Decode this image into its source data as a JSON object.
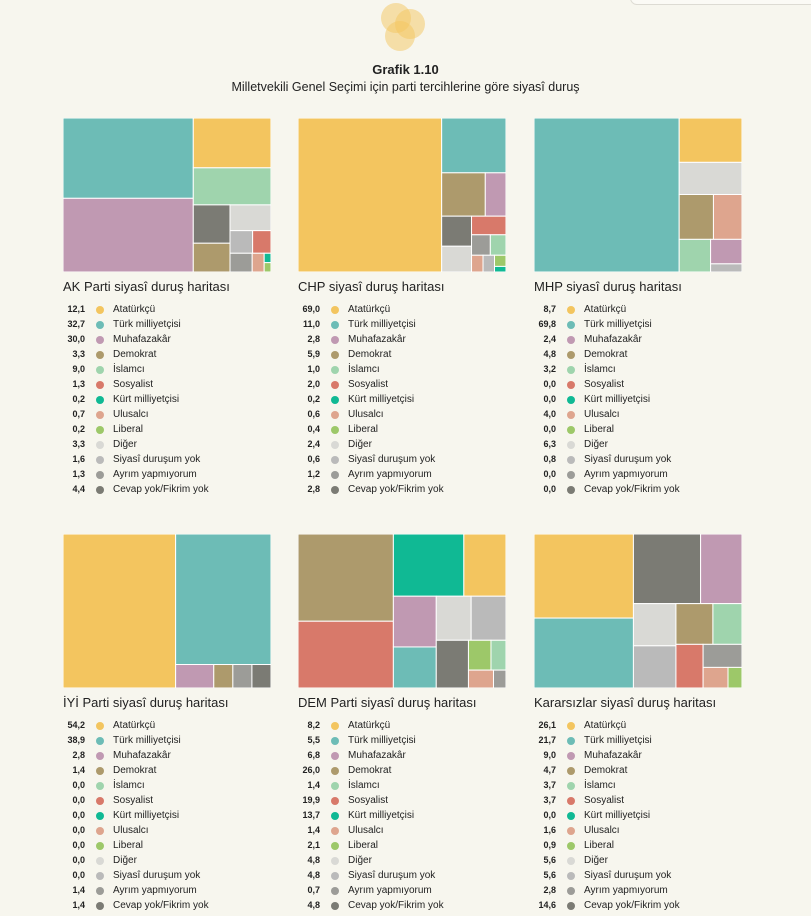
{
  "figure_label": "Grafik 1.10",
  "figure_title": "Milletvekili Genel Seçimi için parti tercihlerine göre siyasî duruş",
  "colors": {
    "Atatürkçü": "#f3c55f",
    "Türk milliyetçisi": "#6dbcb6",
    "Muhafazakâr": "#c099b2",
    "Demokrat": "#ad9a6c",
    "İslamcı": "#9fd4ad",
    "Sosyalist": "#d8796a",
    "Kürt milliyetçisi": "#10b994",
    "Ulusalcı": "#dea58e",
    "Liberal": "#9dc869",
    "Diğer": "#d9d9d5",
    "Siyasî duruşum yok": "#bababa",
    "Ayrım yapmıyorum": "#9c9c98",
    "Cevap yok/Fikrim yok": "#7b7b74"
  },
  "chart_data": [
    {
      "type": "treemap",
      "title": "AK Parti siyasî duruş haritası",
      "categories": [
        "Atatürkçü",
        "Türk milliyetçisi",
        "Muhafazakâr",
        "Demokrat",
        "İslamcı",
        "Sosyalist",
        "Kürt milliyetçisi",
        "Ulusalcı",
        "Liberal",
        "Diğer",
        "Siyasî duruşum yok",
        "Ayrım yapmıyorum",
        "Cevap yok/Fikrim yok"
      ],
      "values": [
        12.1,
        32.7,
        30.0,
        3.3,
        9.0,
        1.3,
        0.2,
        0.7,
        0.2,
        3.3,
        1.6,
        1.3,
        4.4
      ],
      "labels": [
        "12,1",
        "32,7",
        "30,0",
        "3,3",
        "9,0",
        "1,3",
        "0,2",
        "0,7",
        "0,2",
        "3,3",
        "1,6",
        "1,3",
        "4,4"
      ]
    },
    {
      "type": "treemap",
      "title": "CHP siyasî duruş haritası",
      "categories": [
        "Atatürkçü",
        "Türk milliyetçisi",
        "Muhafazakâr",
        "Demokrat",
        "İslamcı",
        "Sosyalist",
        "Kürt milliyetçisi",
        "Ulusalcı",
        "Liberal",
        "Diğer",
        "Siyasî duruşum yok",
        "Ayrım yapmıyorum",
        "Cevap yok/Fikrim yok"
      ],
      "values": [
        69.0,
        11.0,
        2.8,
        5.9,
        1.0,
        2.0,
        0.2,
        0.6,
        0.4,
        2.4,
        0.6,
        1.2,
        2.8
      ],
      "labels": [
        "69,0",
        "11,0",
        "2,8",
        "5,9",
        "1,0",
        "2,0",
        "0,2",
        "0,6",
        "0,4",
        "2,4",
        "0,6",
        "1,2",
        "2,8"
      ]
    },
    {
      "type": "treemap",
      "title": "MHP siyasî duruş haritası",
      "categories": [
        "Atatürkçü",
        "Türk milliyetçisi",
        "Muhafazakâr",
        "Demokrat",
        "İslamcı",
        "Sosyalist",
        "Kürt milliyetçisi",
        "Ulusalcı",
        "Liberal",
        "Diğer",
        "Siyasî duruşum yok",
        "Ayrım yapmıyorum",
        "Cevap yok/Fikrim yok"
      ],
      "values": [
        8.7,
        69.8,
        2.4,
        4.8,
        3.2,
        0.0,
        0.0,
        4.0,
        0.0,
        6.3,
        0.8,
        0.0,
        0.0
      ],
      "labels": [
        "8,7",
        "69,8",
        "2,4",
        "4,8",
        "3,2",
        "0,0",
        "0,0",
        "4,0",
        "0,0",
        "6,3",
        "0,8",
        "0,0",
        "0,0"
      ]
    },
    {
      "type": "treemap",
      "title": "İYİ Parti siyasî duruş haritası",
      "categories": [
        "Atatürkçü",
        "Türk milliyetçisi",
        "Muhafazakâr",
        "Demokrat",
        "İslamcı",
        "Sosyalist",
        "Kürt milliyetçisi",
        "Ulusalcı",
        "Liberal",
        "Diğer",
        "Siyasî duruşum yok",
        "Ayrım yapmıyorum",
        "Cevap yok/Fikrim yok"
      ],
      "values": [
        54.2,
        38.9,
        2.8,
        1.4,
        0.0,
        0.0,
        0.0,
        0.0,
        0.0,
        0.0,
        0.0,
        1.4,
        1.4
      ],
      "labels": [
        "54,2",
        "38,9",
        "2,8",
        "1,4",
        "0,0",
        "0,0",
        "0,0",
        "0,0",
        "0,0",
        "0,0",
        "0,0",
        "1,4",
        "1,4"
      ]
    },
    {
      "type": "treemap",
      "title": "DEM Parti siyasî duruş haritası",
      "categories": [
        "Atatürkçü",
        "Türk milliyetçisi",
        "Muhafazakâr",
        "Demokrat",
        "İslamcı",
        "Sosyalist",
        "Kürt milliyetçisi",
        "Ulusalcı",
        "Liberal",
        "Diğer",
        "Siyasî duruşum yok",
        "Ayrım yapmıyorum",
        "Cevap yok/Fikrim yok"
      ],
      "values": [
        8.2,
        5.5,
        6.8,
        26.0,
        1.4,
        19.9,
        13.7,
        1.4,
        2.1,
        4.8,
        4.8,
        0.7,
        4.8
      ],
      "labels": [
        "8,2",
        "5,5",
        "6,8",
        "26,0",
        "1,4",
        "19,9",
        "13,7",
        "1,4",
        "2,1",
        "4,8",
        "4,8",
        "0,7",
        "4,8"
      ]
    },
    {
      "type": "treemap",
      "title": "Kararsızlar siyasî duruş haritası",
      "categories": [
        "Atatürkçü",
        "Türk milliyetçisi",
        "Muhafazakâr",
        "Demokrat",
        "İslamcı",
        "Sosyalist",
        "Kürt milliyetçisi",
        "Ulusalcı",
        "Liberal",
        "Diğer",
        "Siyasî duruşum yok",
        "Ayrım yapmıyorum",
        "Cevap yok/Fikrim yok"
      ],
      "values": [
        26.1,
        21.7,
        9.0,
        4.7,
        3.7,
        3.7,
        0.0,
        1.6,
        0.9,
        5.6,
        5.6,
        2.8,
        14.6
      ],
      "labels": [
        "26,1",
        "21,7",
        "9,0",
        "4,7",
        "3,7",
        "3,7",
        "0,0",
        "1,6",
        "0,9",
        "5,6",
        "5,6",
        "2,8",
        "14,6"
      ]
    }
  ]
}
